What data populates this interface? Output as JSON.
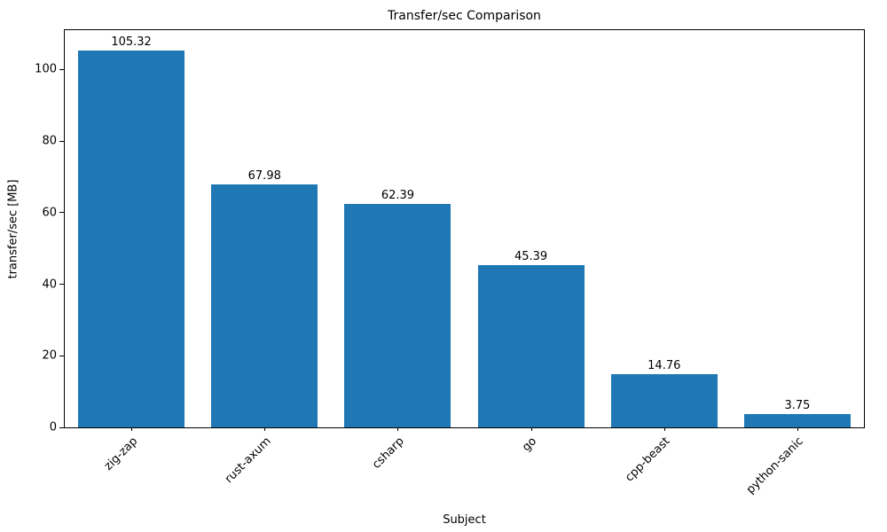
{
  "chart_data": {
    "type": "bar",
    "title": "Transfer/sec Comparison",
    "xlabel": "Subject",
    "ylabel": "transfer/sec [MB]",
    "categories": [
      "zig-zap",
      "rust-axum",
      "csharp",
      "go",
      "cpp-beast",
      "python-sanic"
    ],
    "values": [
      105.32,
      67.98,
      62.39,
      45.39,
      14.76,
      3.75
    ],
    "value_labels": [
      "105.32",
      "67.98",
      "62.39",
      "45.39",
      "14.76",
      "3.75"
    ],
    "bar_color": "#1f77b4",
    "ylim": [
      0,
      111
    ],
    "yticks": [
      0,
      20,
      40,
      60,
      80,
      100
    ],
    "grid": false,
    "legend_position": "none"
  }
}
